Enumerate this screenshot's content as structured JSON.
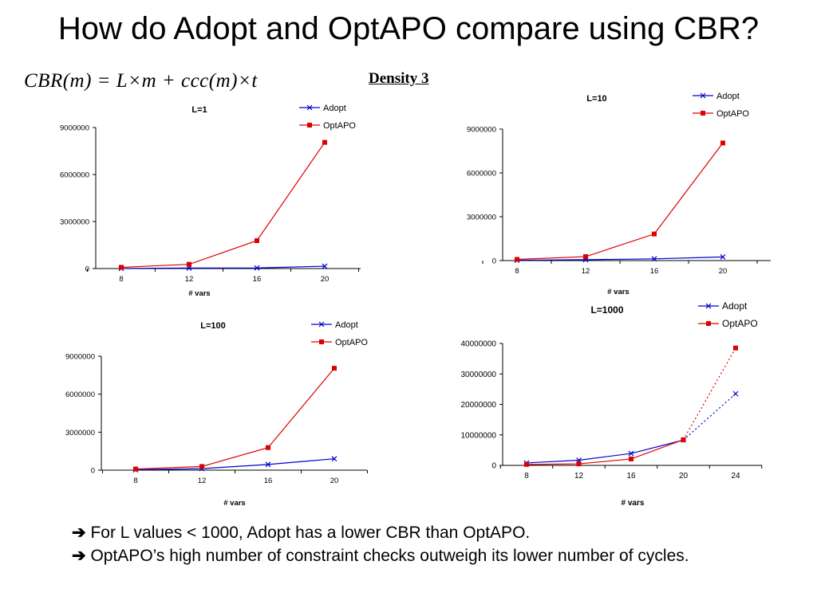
{
  "slide": {
    "title": "How do Adopt and OptAPO compare using CBR?",
    "formula": "CBR(m) = L×m + ccc(m)×t",
    "density_label": "Density 3"
  },
  "series_colors": {
    "Adopt": "#0000cc",
    "OptAPO": "#dd0000"
  },
  "chart_data": [
    {
      "type": "line",
      "title": "L=1",
      "xlabel": "# vars",
      "ylabel": "",
      "categories": [
        "8",
        "12",
        "16",
        "20"
      ],
      "yticks": [
        "0",
        "3000000",
        "6000000",
        "9000000"
      ],
      "ylim": [
        0,
        9000000
      ],
      "legend": "top-right",
      "series": [
        {
          "name": "Adopt",
          "marker": "x",
          "values": [
            10000,
            30000,
            40000,
            150000
          ]
        },
        {
          "name": "OptAPO",
          "marker": "square",
          "values": [
            80000,
            270000,
            1780000,
            8050000
          ]
        }
      ]
    },
    {
      "type": "line",
      "title": "L=10",
      "xlabel": "# vars",
      "ylabel": "",
      "categories": [
        "8",
        "12",
        "16",
        "20"
      ],
      "yticks": [
        "0",
        "3000000",
        "6000000",
        "9000000"
      ],
      "ylim": [
        0,
        9000000
      ],
      "legend": "top-right",
      "series": [
        {
          "name": "Adopt",
          "marker": "x",
          "values": [
            20000,
            60000,
            120000,
            250000
          ]
        },
        {
          "name": "OptAPO",
          "marker": "square",
          "values": [
            80000,
            270000,
            1820000,
            8050000
          ]
        }
      ]
    },
    {
      "type": "line",
      "title": "L=100",
      "xlabel": "# vars",
      "ylabel": "",
      "categories": [
        "8",
        "12",
        "16",
        "20"
      ],
      "yticks": [
        "0",
        "3000000",
        "6000000",
        "9000000"
      ],
      "ylim": [
        0,
        9000000
      ],
      "legend": "top-right",
      "series": [
        {
          "name": "Adopt",
          "marker": "x",
          "values": [
            30000,
            120000,
            450000,
            900000
          ]
        },
        {
          "name": "OptAPO",
          "marker": "square",
          "values": [
            90000,
            290000,
            1780000,
            8050000
          ]
        }
      ]
    },
    {
      "type": "line",
      "title": "L=1000",
      "xlabel": "# vars",
      "ylabel": "",
      "categories": [
        "8",
        "12",
        "16",
        "20",
        "24"
      ],
      "yticks": [
        "0",
        "10000000",
        "20000000",
        "30000000",
        "40000000"
      ],
      "ylim": [
        0,
        40000000
      ],
      "legend": "top-right",
      "dotted_from_index": 3,
      "series": [
        {
          "name": "Adopt",
          "marker": "x",
          "values": [
            800000,
            1700000,
            3900000,
            8300000,
            23500000
          ]
        },
        {
          "name": "OptAPO",
          "marker": "square",
          "values": [
            300000,
            500000,
            2100000,
            8400000,
            38500000
          ]
        }
      ]
    }
  ],
  "bullets": [
    {
      "arrow": "➔",
      "text": "For L values < 1000, Adopt has a lower CBR than OptAPO."
    },
    {
      "arrow": "➔",
      "text": "OptAPO’s high number of constraint checks outweigh its lower number of cycles."
    }
  ]
}
